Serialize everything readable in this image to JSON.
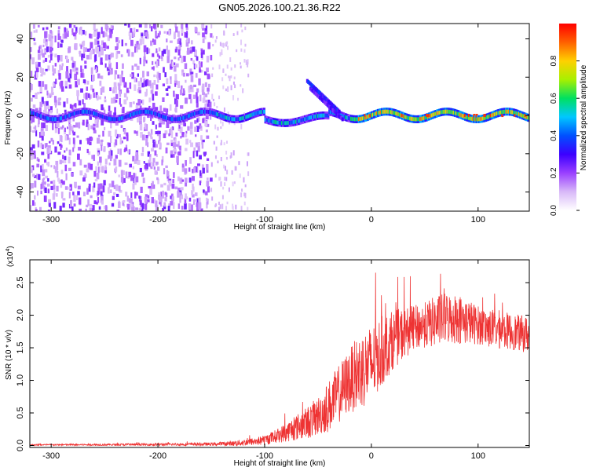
{
  "figure": {
    "title": "GN05.2026.100.21.36.R22"
  },
  "chart_data": [
    {
      "type": "heatmap",
      "xlabel": "Height of straight line (km)",
      "ylabel": "Frequency (Hz)",
      "xlim": [
        -320,
        148
      ],
      "ylim": [
        -50,
        48
      ],
      "xticks": [
        -300,
        -200,
        -100,
        0,
        100
      ],
      "yticks": [
        -40,
        -20,
        0,
        20,
        40
      ],
      "grid": false,
      "colorbar": {
        "label": "Normalized spectral amplitude",
        "range": [
          0,
          1
        ],
        "ticks": [
          "0.0",
          "0.2",
          "0.4",
          "0.6",
          "0.8"
        ],
        "colors": [
          "#ffffff",
          "#d8b8f8",
          "#9a40ff",
          "#3c00ff",
          "#0050ff",
          "#00c8ff",
          "#00e060",
          "#a8f000",
          "#ffd000",
          "#ff6000",
          "#ff0000"
        ]
      },
      "features": {
        "scattered_noise_x_range": [
          -320,
          -150
        ],
        "sparse_noise_x_range": [
          -150,
          -115
        ],
        "ridge_frequency_hz": 0,
        "strong_ridge_x_range": [
          -20,
          148
        ],
        "deviating_branch_x_range": [
          -60,
          -30
        ],
        "deviating_branch_max_hz": 18
      }
    },
    {
      "type": "line",
      "xlabel": "Height of straight line (km)",
      "ylabel": "SNR (10 * v/v)",
      "y_multiplier": "(x10",
      "y_multiplier_exp": "4",
      "xlim": [
        -320,
        148
      ],
      "ylim": [
        -0.03,
        2.85
      ],
      "xticks": [
        -300,
        -200,
        -100,
        0,
        100
      ],
      "yticks": [
        "0.0",
        "0.5",
        "1.0",
        "1.5",
        "2.0",
        "2.5"
      ],
      "grid": false,
      "color": "#ee3333",
      "envelope": {
        "x": [
          -320,
          -250,
          -200,
          -150,
          -130,
          -110,
          -100,
          -90,
          -80,
          -70,
          -60,
          -50,
          -40,
          -30,
          -20,
          -10,
          0,
          10,
          20,
          30,
          40,
          50,
          60,
          70,
          80,
          90,
          100,
          110,
          120,
          130,
          140,
          148
        ],
        "mean": [
          0.01,
          0.012,
          0.015,
          0.02,
          0.03,
          0.06,
          0.08,
          0.14,
          0.2,
          0.28,
          0.35,
          0.45,
          0.6,
          0.8,
          1.0,
          1.15,
          1.25,
          1.45,
          1.62,
          1.72,
          1.8,
          1.85,
          1.9,
          1.95,
          1.95,
          1.9,
          1.85,
          1.8,
          1.78,
          1.75,
          1.72,
          1.7
        ],
        "spread": [
          0.01,
          0.015,
          0.02,
          0.025,
          0.04,
          0.06,
          0.08,
          0.1,
          0.15,
          0.2,
          0.25,
          0.3,
          0.4,
          0.45,
          0.5,
          0.6,
          0.6,
          0.55,
          0.45,
          0.4,
          0.35,
          0.35,
          0.4,
          0.4,
          0.4,
          0.35,
          0.3,
          0.3,
          0.3,
          0.28,
          0.28,
          0.28
        ]
      }
    }
  ]
}
